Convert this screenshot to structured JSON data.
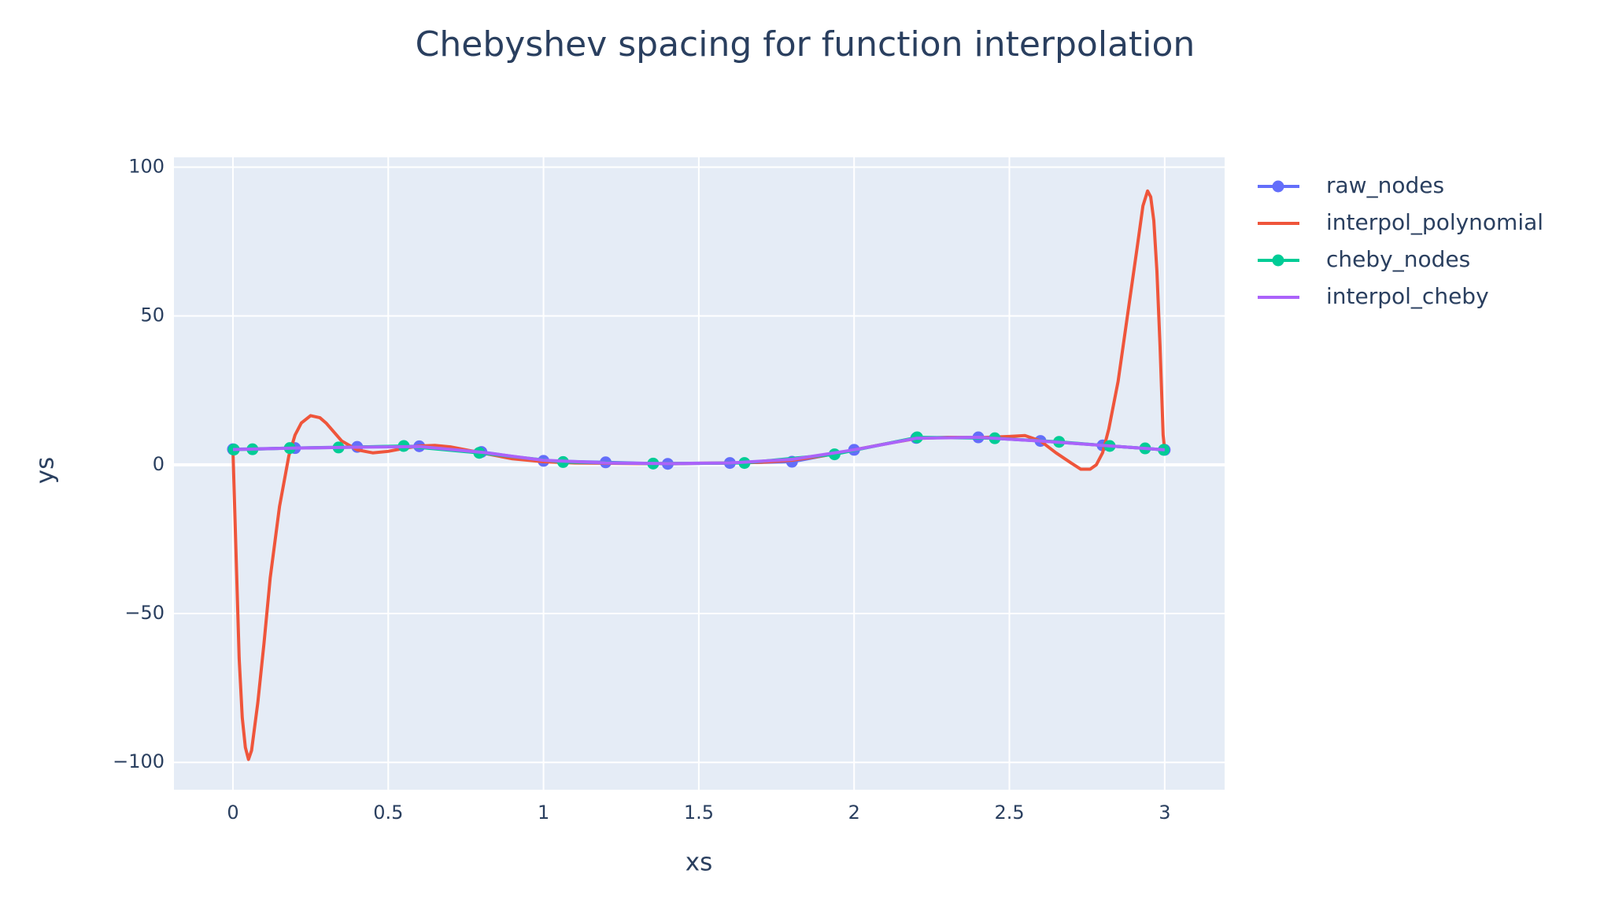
{
  "chart_data": {
    "type": "line",
    "title": "Chebyshev spacing for function interpolation",
    "x_label": "xs",
    "y_label": "ys",
    "xlim": [
      -0.19,
      3.193
    ],
    "ylim": [
      -109.2,
      103.3
    ],
    "xticks": [
      0,
      0.5,
      1,
      1.5,
      2,
      2.5,
      3
    ],
    "yticks": [
      {
        "value": -100,
        "label": "−100"
      },
      {
        "value": -50,
        "label": "−50"
      },
      0,
      50,
      100
    ],
    "grid": true,
    "legend": "right",
    "series": [
      {
        "name": "raw_nodes",
        "color": "#636efa",
        "markers": true,
        "x": [
          0,
          0.2,
          0.4,
          0.6,
          0.8,
          1.0,
          1.2,
          1.4,
          1.6,
          1.8,
          2.0,
          2.2,
          2.4,
          2.6,
          2.8,
          3.0
        ],
        "values": [
          5.2,
          5.6,
          6.0,
          6.2,
          4.3,
          1.3,
          0.8,
          0.3,
          0.6,
          1.0,
          5.0,
          9.0,
          9.2,
          8.0,
          6.5,
          5.0
        ]
      },
      {
        "name": "interpol_polynomial",
        "color": "#EF553B",
        "markers": false,
        "x": [
          0,
          0.01,
          0.02,
          0.03,
          0.04,
          0.05,
          0.06,
          0.08,
          0.1,
          0.12,
          0.15,
          0.18,
          0.2,
          0.22,
          0.25,
          0.28,
          0.3,
          0.35,
          0.4,
          0.45,
          0.5,
          0.55,
          0.6,
          0.65,
          0.7,
          0.8,
          0.9,
          1.0,
          1.1,
          1.2,
          1.3,
          1.4,
          1.5,
          1.6,
          1.7,
          1.8,
          1.9,
          2.0,
          2.1,
          2.2,
          2.3,
          2.4,
          2.5,
          2.55,
          2.6,
          2.65,
          2.7,
          2.73,
          2.76,
          2.78,
          2.8,
          2.82,
          2.85,
          2.88,
          2.91,
          2.93,
          2.945,
          2.955,
          2.965,
          2.975,
          2.985,
          2.995,
          3.0
        ],
        "values": [
          5,
          -30,
          -65,
          -85,
          -95,
          -99,
          -96,
          -80,
          -60,
          -38,
          -14,
          3,
          10,
          14,
          16.5,
          15.8,
          14,
          8,
          5,
          4,
          4.5,
          5.5,
          6.3,
          6.5,
          6,
          4,
          2,
          1,
          0.6,
          0.5,
          0.4,
          0.4,
          0.5,
          0.6,
          0.8,
          1.5,
          3,
          5,
          7,
          8.8,
          9.2,
          9.1,
          9.5,
          9.8,
          8,
          4,
          0.5,
          -1.5,
          -1.5,
          0,
          4,
          12,
          28,
          50,
          72,
          87,
          92,
          90,
          82,
          65,
          40,
          10,
          5
        ]
      },
      {
        "name": "cheby_nodes",
        "color": "#00cc96",
        "markers": true,
        "x": [
          0.003,
          0.063,
          0.183,
          0.34,
          0.55,
          0.793,
          1.063,
          1.353,
          1.647,
          1.937,
          2.203,
          2.453,
          2.66,
          2.823,
          2.937,
          2.997
        ],
        "values": [
          5.1,
          5.2,
          5.6,
          5.8,
          6.3,
          4.0,
          0.9,
          0.4,
          0.6,
          3.5,
          9.2,
          8.9,
          7.7,
          6.3,
          5.5,
          5.0
        ]
      },
      {
        "name": "interpol_cheby",
        "color": "#ab63fa",
        "markers": false,
        "x": [
          0,
          0.2,
          0.4,
          0.6,
          0.8,
          1.0,
          1.2,
          1.4,
          1.6,
          1.8,
          2.0,
          2.2,
          2.4,
          2.6,
          2.8,
          3.0
        ],
        "values": [
          5.1,
          5.6,
          5.9,
          6.1,
          4.2,
          1.5,
          0.6,
          0.4,
          0.6,
          1.8,
          5.0,
          8.9,
          9.2,
          8.0,
          6.5,
          5.0
        ]
      }
    ]
  }
}
